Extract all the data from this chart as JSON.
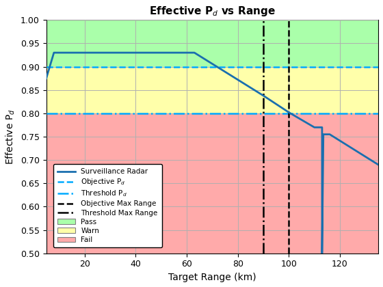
{
  "title": "Effective P$_d$ vs Range",
  "xlabel": "Target Range (km)",
  "ylabel": "Effective P$_d$",
  "xlim": [
    5,
    135
  ],
  "ylim": [
    0.5,
    1.0
  ],
  "objective_pd": 0.9,
  "threshold_pd": 0.8,
  "objective_max_range": 100,
  "threshold_max_range": 90,
  "radar_color": "#1a6faf",
  "pd_line_color": "#00aaff",
  "pass_color": "#aaffaa",
  "warn_color": "#ffffaa",
  "fail_color": "#ffaaaa",
  "grid_color": "#b0b0b0",
  "radar_x": [
    5,
    8,
    60,
    63,
    90,
    100,
    110,
    113,
    113,
    113.5,
    116,
    135
  ],
  "radar_y": [
    0.875,
    0.93,
    0.93,
    0.93,
    0.838,
    0.802,
    0.77,
    0.77,
    0.5,
    0.755,
    0.755,
    0.69
  ],
  "xticks": [
    20,
    40,
    60,
    80,
    100,
    120
  ],
  "yticks": [
    0.5,
    0.55,
    0.6,
    0.65,
    0.7,
    0.75,
    0.8,
    0.85,
    0.9,
    0.95,
    1.0
  ]
}
